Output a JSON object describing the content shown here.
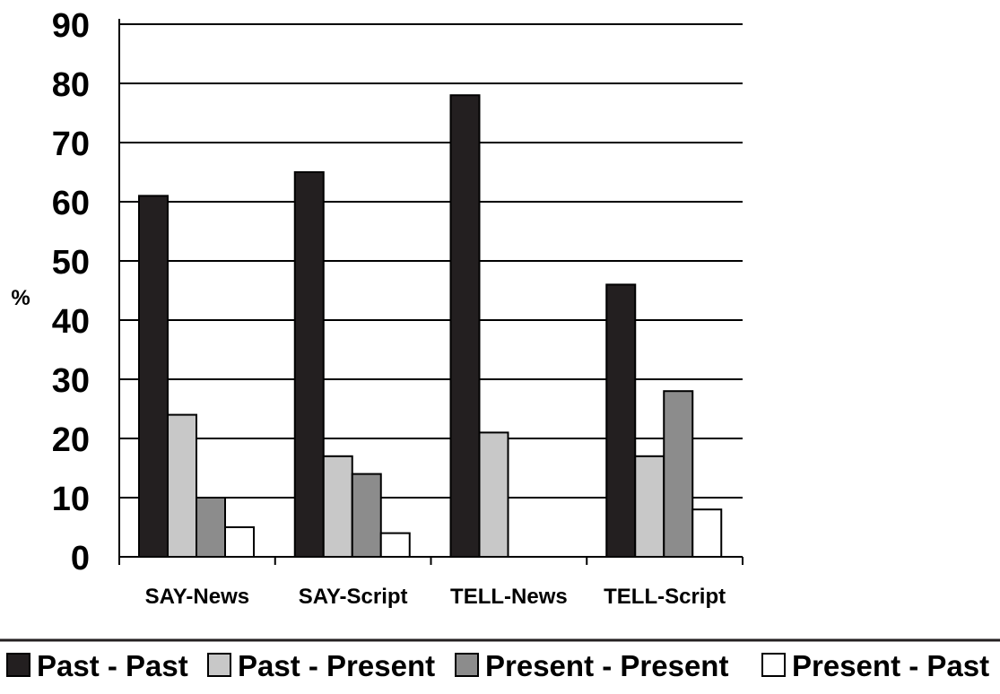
{
  "chart_data": {
    "type": "bar",
    "categories": [
      "SAY-News",
      "SAY-Script",
      "TELL-News",
      "TELL-Script"
    ],
    "series": [
      {
        "name": "Past - Past",
        "values": [
          61,
          65,
          78,
          46
        ],
        "color": "#231f20"
      },
      {
        "name": "Past - Present",
        "values": [
          24,
          17,
          21,
          17
        ],
        "color": "#c8c8c8"
      },
      {
        "name": "Present - Present",
        "values": [
          10,
          14,
          0,
          28
        ],
        "color": "#8c8c8c"
      },
      {
        "name": "Present - Past",
        "values": [
          5,
          4,
          0,
          8
        ],
        "color": "#ffffff"
      }
    ],
    "ylabel": "%",
    "xlabel": "",
    "ylim": [
      0,
      90
    ],
    "yticks": [
      0,
      10,
      20,
      30,
      40,
      50,
      60,
      70,
      80,
      90
    ],
    "grid": true,
    "legend_position": "bottom"
  }
}
